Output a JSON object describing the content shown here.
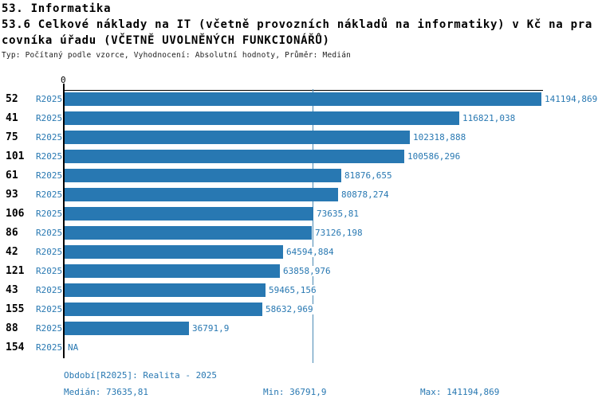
{
  "header": {
    "title_line1": "53. Informatika",
    "title_line2": "53.6 Celkové náklady na IT (včetně provozních nákladů na informatiky) v Kč na pra",
    "title_line3": "covníka úřadu (VČETNĚ UVOLNĚNÝCH FUNKCIONÁŘŮ)",
    "meta_line": "Typ: Počítaný podle vzorce, Vyhodnocení: Absolutní hodnoty, Průměr: Medián"
  },
  "chart_data": {
    "type": "bar",
    "orientation": "horizontal",
    "title": "53.6 Celkové náklady na IT (včetně provozních nákladů na informatiky) v Kč na pracovníka úřadu (VČETNĚ UVOLNĚNÝCH FUNKCIONÁŘŮ)",
    "x_axis_zero_label": "0",
    "xlim": [
      0,
      141194.869
    ],
    "grid": false,
    "median_value": 73635.81,
    "series_period": "R2025",
    "rows": [
      {
        "org": "52",
        "period": "R2025",
        "value": 141194.869,
        "value_label": "141194,869"
      },
      {
        "org": "41",
        "period": "R2025",
        "value": 116821.038,
        "value_label": "116821,038"
      },
      {
        "org": "75",
        "period": "R2025",
        "value": 102318.888,
        "value_label": "102318,888"
      },
      {
        "org": "101",
        "period": "R2025",
        "value": 100586.296,
        "value_label": "100586,296"
      },
      {
        "org": "61",
        "period": "R2025",
        "value": 81876.655,
        "value_label": "81876,655"
      },
      {
        "org": "93",
        "period": "R2025",
        "value": 80878.274,
        "value_label": "80878,274"
      },
      {
        "org": "106",
        "period": "R2025",
        "value": 73635.81,
        "value_label": "73635,81"
      },
      {
        "org": "86",
        "period": "R2025",
        "value": 73126.198,
        "value_label": "73126,198"
      },
      {
        "org": "42",
        "period": "R2025",
        "value": 64594.884,
        "value_label": "64594,884"
      },
      {
        "org": "121",
        "period": "R2025",
        "value": 63858.976,
        "value_label": "63858,976"
      },
      {
        "org": "43",
        "period": "R2025",
        "value": 59465.156,
        "value_label": "59465,156"
      },
      {
        "org": "155",
        "period": "R2025",
        "value": 58632.969,
        "value_label": "58632,969"
      },
      {
        "org": "88",
        "period": "R2025",
        "value": 36791.9,
        "value_label": "36791,9"
      },
      {
        "org": "154",
        "period": "R2025",
        "value": null,
        "value_label": "NA"
      }
    ]
  },
  "footer": {
    "period_line": "Období[R2025]: Realita - 2025",
    "median_label": "Medián: 73635,81",
    "min_label": "Min: 36791,9",
    "max_label": "Max: 141194,869"
  },
  "colors": {
    "bar": "#2878b2",
    "accent_text": "#2878b2",
    "median_line": "#4a8ab5",
    "meta_text": "#1e1e1e",
    "title_text": "#000000"
  },
  "layout_hints": {
    "legend": "none",
    "value_labels": "right-of-bar"
  }
}
